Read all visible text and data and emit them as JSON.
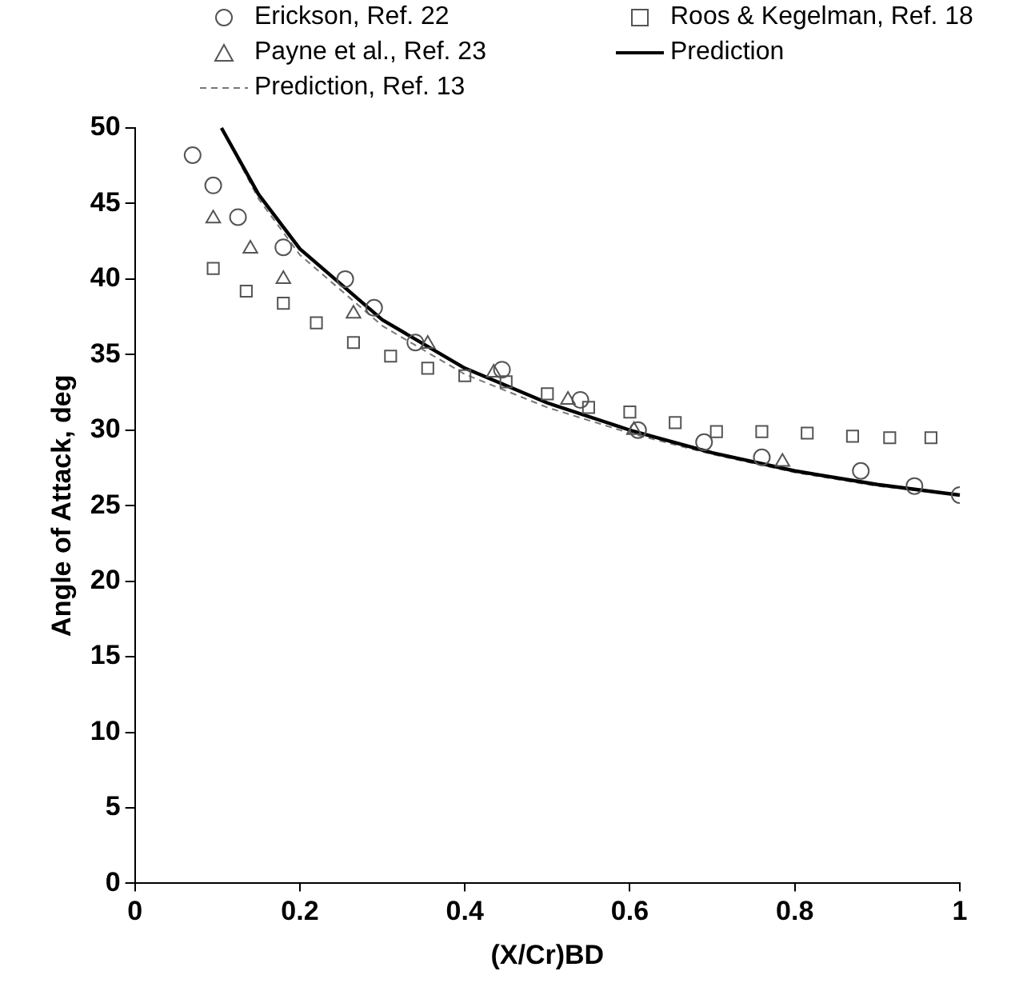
{
  "chart_data": {
    "type": "scatter",
    "xlabel": "(X/Cr)BD",
    "ylabel": "Angle of Attack, deg",
    "xlim": [
      0,
      1
    ],
    "ylim": [
      0,
      50
    ],
    "xticks": [
      0,
      0.2,
      0.4,
      0.6,
      0.8,
      1
    ],
    "yticks": [
      0,
      5,
      10,
      15,
      20,
      25,
      30,
      35,
      40,
      45,
      50
    ],
    "grid": false,
    "legend": "top",
    "series": [
      {
        "name": "Erickson, Ref. 22",
        "color": "#555555",
        "marker": "circle",
        "x": [
          0.07,
          0.095,
          0.125,
          0.18,
          0.255,
          0.29,
          0.34,
          0.445,
          0.54,
          0.61,
          0.69,
          0.76,
          0.88,
          0.945,
          1.0
        ],
        "values": [
          48.2,
          46.2,
          44.1,
          42.1,
          40.0,
          38.1,
          35.8,
          34.0,
          32.0,
          30.0,
          29.2,
          28.2,
          27.3,
          26.3,
          25.7
        ]
      },
      {
        "name": "Roos & Kegelman, Ref. 18",
        "color": "#555555",
        "marker": "square",
        "x": [
          0.095,
          0.135,
          0.18,
          0.22,
          0.265,
          0.31,
          0.355,
          0.4,
          0.45,
          0.5,
          0.55,
          0.6,
          0.655,
          0.705,
          0.76,
          0.815,
          0.87,
          0.915,
          0.965
        ],
        "values": [
          40.7,
          39.2,
          38.4,
          37.1,
          35.8,
          34.9,
          34.1,
          33.6,
          33.2,
          32.4,
          31.5,
          31.2,
          30.5,
          29.9,
          29.9,
          29.8,
          29.6,
          29.5,
          29.5
        ]
      },
      {
        "name": "Payne et al., Ref. 23",
        "color": "#555555",
        "marker": "triangle",
        "x": [
          0.095,
          0.14,
          0.18,
          0.265,
          0.355,
          0.435,
          0.525,
          0.605,
          0.785
        ],
        "values": [
          44.0,
          42.0,
          40.0,
          37.7,
          35.7,
          33.8,
          32.0,
          30.0,
          27.9
        ]
      },
      {
        "name": "Prediction",
        "type": "line",
        "color": "#000000",
        "line_style": "solid",
        "marker": "none",
        "x": [
          0.105,
          0.15,
          0.2,
          0.3,
          0.4,
          0.5,
          0.6,
          0.7,
          0.8,
          0.9,
          1.0
        ],
        "values": [
          50,
          45.6,
          42,
          37.3,
          34.1,
          31.8,
          30.0,
          28.5,
          27.3,
          26.4,
          25.7
        ]
      },
      {
        "name": "Prediction, Ref. 13",
        "type": "line",
        "color": "#777777",
        "line_style": "dashed",
        "marker": "none",
        "x": [
          0.105,
          0.15,
          0.2,
          0.3,
          0.4,
          0.5,
          0.6,
          0.7,
          0.8,
          0.9,
          1.0
        ],
        "values": [
          50,
          45.3,
          41.6,
          36.9,
          33.7,
          31.5,
          29.8,
          28.4,
          27.2,
          26.3,
          25.7
        ]
      }
    ]
  }
}
